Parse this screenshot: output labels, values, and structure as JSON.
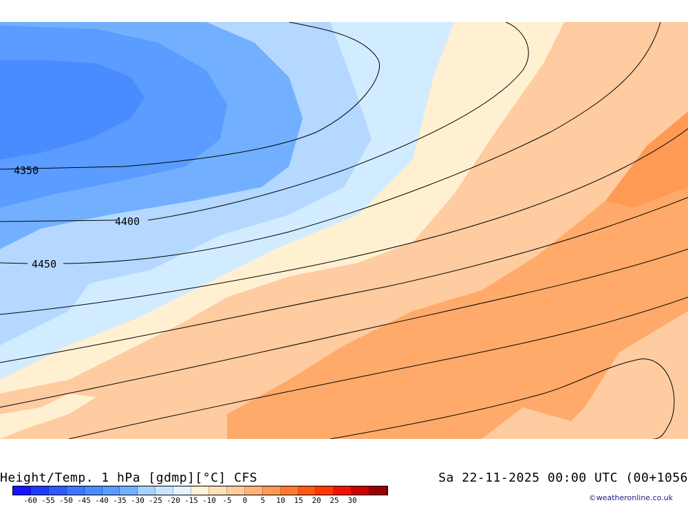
{
  "map": {
    "title": "Height/Temp. 1 hPa [gdmp][°C] CFS",
    "datetime": "Sa 22-11-2025 00:00 UTC (00+1056",
    "credit": "©weatheronline.co.uk",
    "contour_labels": [
      "4350",
      "4400",
      "4450"
    ]
  },
  "legend": {
    "ticks": [
      "-60",
      "-55",
      "-50",
      "-45",
      "-40",
      "-35",
      "-30",
      "-25",
      "-20",
      "-15",
      "-10",
      "-5",
      "0",
      "5",
      "10",
      "15",
      "20",
      "25",
      "30"
    ],
    "colors": [
      "#1414ff",
      "#1e3cff",
      "#2e5aff",
      "#3f76ff",
      "#4a8cff",
      "#5a9cff",
      "#72b0ff",
      "#a8d2ff",
      "#c8e6ff",
      "#e6f4ff",
      "#fff2d8",
      "#ffe0b8",
      "#ffcca0",
      "#ffb27a",
      "#ff9a56",
      "#ff7a30",
      "#ff5a14",
      "#ff3a00",
      "#f01400",
      "#c80000",
      "#960000"
    ]
  },
  "colors": {
    "deep_blue": "#4a8cff",
    "mid_blue": "#72b0ff",
    "light_blue": "#b4d8ff",
    "pale_blue": "#d2ecff",
    "cream": "#fff0d2",
    "peach": "#ffcba0",
    "orange": "#ffaa6a",
    "deep_orange": "#ff9a56"
  }
}
